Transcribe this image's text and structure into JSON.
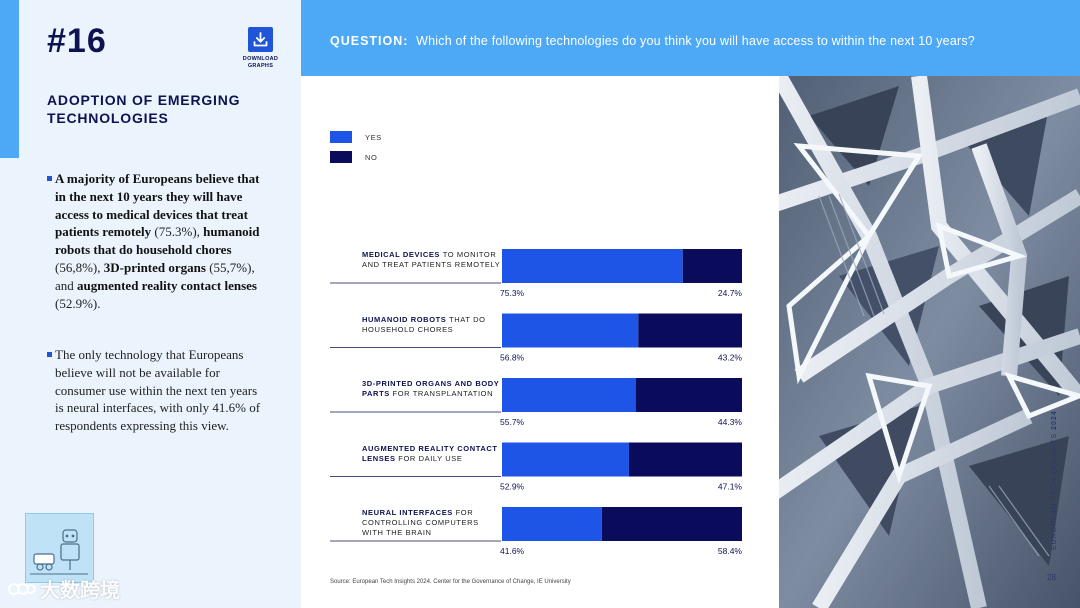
{
  "header": {
    "issue_number": "#16",
    "download_label": "DOWNLOAD GRAPHS",
    "question_label": "QUESTION:",
    "question_text": "Which of the following technologies do you think you will have access to within the next 10 years?"
  },
  "sidebar": {
    "section_title": "ADOPTION OF EMERGING TECHNOLOGIES",
    "bullets": [
      [
        {
          "t": "A majority of Europeans believe that in the next 10 years they will ",
          "b": true
        },
        {
          "t": "have access to medical devices that treat patients remotely",
          "b": true
        },
        {
          "t": " (75.3%), ",
          "b": false
        },
        {
          "t": "humanoid robots that do household chores",
          "b": true
        },
        {
          "t": " (56,8%), ",
          "b": false
        },
        {
          "t": "3D-printed organs",
          "b": true
        },
        {
          "t": " (55,7%), and ",
          "b": false
        },
        {
          "t": "augmented reality contact lenses",
          "b": true
        },
        {
          "t": " (52.9%).",
          "b": false
        }
      ],
      [
        {
          "t": "The only technology that Europeans believe will not be available for consumer use within the next ten years is neural interfaces, with only 41.6% of respondents expressing this view.",
          "b": false
        }
      ]
    ],
    "watermark": "大数跨境"
  },
  "side_text": {
    "vertical_prefix": "EUROPEAN TECH INSIGHTS ",
    "vertical_year": "2024",
    "page_number": "28"
  },
  "colors": {
    "yes": "#1f55e6",
    "no": "#0b0b5c",
    "accent": "#4da8f5",
    "navy": "#0d1250"
  },
  "chart_data": {
    "type": "bar",
    "orientation": "horizontal",
    "stacked": true,
    "legend": [
      {
        "name": "YES",
        "color": "#1f55e6"
      },
      {
        "name": "NO",
        "color": "#0b0b5c"
      }
    ],
    "categories": [
      {
        "bold": "MEDICAL DEVICES",
        "rest": "TO MONITOR AND TREAT PATIENTS REMOTELY"
      },
      {
        "bold": "HUMANOID ROBOTS",
        "rest": "THAT DO HOUSEHOLD CHORES"
      },
      {
        "bold": "3D-PRINTED ORGANS AND BODY PARTS",
        "rest": "FOR TRANSPLANTATION"
      },
      {
        "bold": "AUGMENTED REALITY CONTACT LENSES",
        "rest": "FOR DAILY USE"
      },
      {
        "bold": "NEURAL INTERFACES",
        "rest": "FOR CONTROLLING COMPUTERS WITH THE BRAIN"
      }
    ],
    "series": [
      {
        "name": "YES",
        "values": [
          75.3,
          56.8,
          55.7,
          52.9,
          41.6
        ],
        "labels": [
          "75.3%",
          "56.8%",
          "55.7%",
          "52.9%",
          "41.6%"
        ]
      },
      {
        "name": "NO",
        "values": [
          24.7,
          43.2,
          44.3,
          47.1,
          58.4
        ],
        "labels": [
          "24.7%",
          "43.2%",
          "44.3%",
          "47.1%",
          "58.4%"
        ]
      }
    ],
    "xlim": [
      0,
      100
    ],
    "source": "Source: European Tech Insights 2024. Center for the Governance of Change, IE University"
  }
}
